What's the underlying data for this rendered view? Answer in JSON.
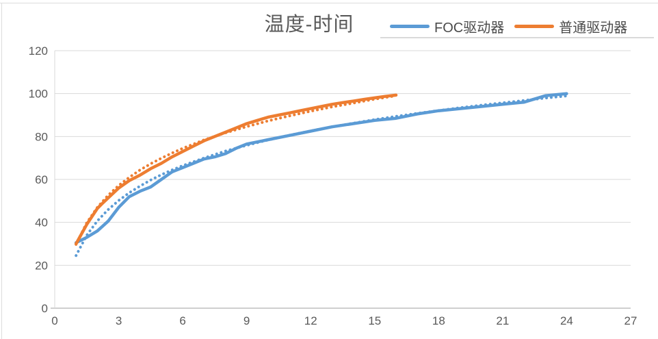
{
  "chart_data": {
    "type": "line",
    "title": "温度-时间",
    "xlabel": "",
    "ylabel": "",
    "xlim": [
      0,
      27
    ],
    "ylim": [
      0,
      120
    ],
    "x_ticks": [
      0,
      3,
      6,
      9,
      12,
      15,
      18,
      21,
      24,
      27
    ],
    "y_ticks": [
      0,
      20,
      40,
      60,
      80,
      100,
      120
    ],
    "grid": "horizontal",
    "legend_position": "top-right",
    "colors": {
      "foc_blue": "#5B9BD5",
      "ordinary_orange": "#ED7D31",
      "gridline": "#D9D9D9",
      "axis_line": "#BFBFBF",
      "tick_text": "#595959",
      "title_text": "#595959"
    },
    "series": [
      {
        "name": "FOC驱动器",
        "color": "#5B9BD5",
        "style": "solid",
        "points": [
          [
            1,
            30.5
          ],
          [
            1.5,
            33
          ],
          [
            2,
            36
          ],
          [
            2.5,
            40.5
          ],
          [
            3,
            47
          ],
          [
            3.5,
            52
          ],
          [
            4,
            54.5
          ],
          [
            4.5,
            56.5
          ],
          [
            5,
            60
          ],
          [
            5.5,
            63.5
          ],
          [
            6,
            65.5
          ],
          [
            6.5,
            67.5
          ],
          [
            7,
            69.5
          ],
          [
            7.5,
            70.5
          ],
          [
            8,
            72
          ],
          [
            8.5,
            74.5
          ],
          [
            9,
            76.5
          ],
          [
            9.5,
            77.5
          ],
          [
            10,
            78.5
          ],
          [
            11,
            80.5
          ],
          [
            12,
            82.5
          ],
          [
            13,
            84.5
          ],
          [
            14,
            86
          ],
          [
            15,
            87.5
          ],
          [
            16,
            88.5
          ],
          [
            17,
            90.5
          ],
          [
            18,
            92
          ],
          [
            19,
            93
          ],
          [
            20,
            94
          ],
          [
            21,
            95
          ],
          [
            22,
            96
          ],
          [
            23,
            99
          ],
          [
            24,
            100
          ]
        ]
      },
      {
        "name": "普通驱动器",
        "color": "#ED7D31",
        "style": "solid",
        "points": [
          [
            1,
            30
          ],
          [
            1.5,
            39
          ],
          [
            2,
            46.5
          ],
          [
            2.2,
            48.5
          ],
          [
            3,
            56
          ],
          [
            3.5,
            59.5
          ],
          [
            4,
            62
          ],
          [
            4.5,
            65
          ],
          [
            5,
            67.5
          ],
          [
            5.5,
            70.5
          ],
          [
            6,
            73
          ],
          [
            6.5,
            75.5
          ],
          [
            7,
            78
          ],
          [
            7.5,
            80
          ],
          [
            8,
            82
          ],
          [
            8.5,
            84
          ],
          [
            9,
            86
          ],
          [
            9.5,
            87.5
          ],
          [
            10,
            89
          ],
          [
            10.5,
            90
          ],
          [
            11,
            91
          ],
          [
            11.5,
            92
          ],
          [
            12,
            93
          ],
          [
            12.5,
            94
          ],
          [
            13,
            95
          ],
          [
            13.5,
            95.8
          ],
          [
            14,
            96.5
          ],
          [
            14.5,
            97.3
          ],
          [
            15,
            98
          ],
          [
            15.5,
            98.7
          ],
          [
            16,
            99.3
          ]
        ]
      }
    ],
    "trendlines": [
      {
        "name": "FOC驱动器 趋势线",
        "color": "#5B9BD5",
        "style": "dotted",
        "points": [
          [
            1,
            24.5
          ],
          [
            1.5,
            34
          ],
          [
            2,
            40.7
          ],
          [
            2.5,
            45.9
          ],
          [
            3,
            50.2
          ],
          [
            3.5,
            53.8
          ],
          [
            4,
            56.9
          ],
          [
            4.5,
            59.7
          ],
          [
            5,
            62.2
          ],
          [
            5.5,
            64.4
          ],
          [
            6,
            66.4
          ],
          [
            7,
            70
          ],
          [
            8,
            73.2
          ],
          [
            9,
            75.9
          ],
          [
            10,
            78.4
          ],
          [
            11,
            80.6
          ],
          [
            12,
            82.6
          ],
          [
            13,
            84.5
          ],
          [
            14,
            86.2
          ],
          [
            15,
            87.9
          ],
          [
            16,
            89.4
          ],
          [
            17,
            90.8
          ],
          [
            18,
            92.1
          ],
          [
            19,
            93.4
          ],
          [
            20,
            94.6
          ],
          [
            21,
            95.7
          ],
          [
            22,
            96.8
          ],
          [
            23,
            97.9
          ],
          [
            24,
            98.9
          ]
        ]
      },
      {
        "name": "普通驱动器 趋势线",
        "color": "#ED7D31",
        "style": "dotted",
        "points": [
          [
            1,
            29.7
          ],
          [
            1.5,
            39.8
          ],
          [
            2,
            47
          ],
          [
            2.5,
            52.6
          ],
          [
            3,
            57.2
          ],
          [
            3.5,
            61
          ],
          [
            4,
            64.4
          ],
          [
            4.5,
            67.3
          ],
          [
            5,
            69.9
          ],
          [
            5.5,
            72.3
          ],
          [
            6,
            74.5
          ],
          [
            7,
            78.4
          ],
          [
            8,
            81.7
          ],
          [
            9,
            84.6
          ],
          [
            10,
            87.3
          ],
          [
            11,
            89.6
          ],
          [
            12,
            91.8
          ],
          [
            13,
            93.8
          ],
          [
            14,
            95.6
          ],
          [
            15,
            97.4
          ],
          [
            16,
            99
          ]
        ]
      }
    ]
  }
}
